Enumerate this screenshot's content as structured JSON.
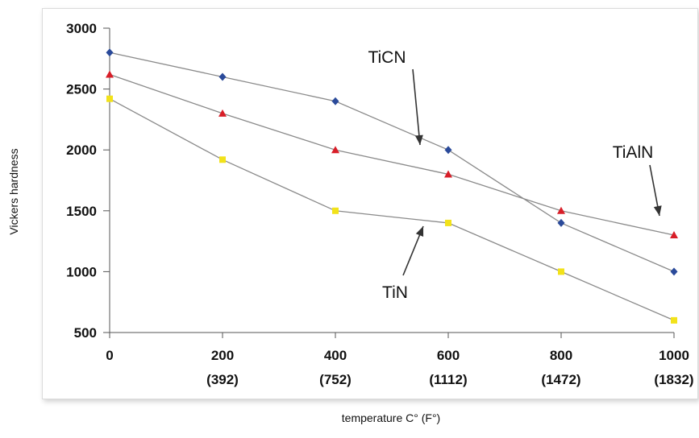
{
  "chart_data": {
    "type": "line",
    "title": "",
    "xlabel": "temperature C° (F°)",
    "ylabel": "Vickers hardness",
    "x": [
      0,
      200,
      400,
      600,
      800,
      1000
    ],
    "x_tick_labels": [
      "0",
      "200",
      "400",
      "600",
      "800",
      "1000"
    ],
    "x_tick_sublabels": [
      "",
      "(392)",
      "(752)",
      "(1112)",
      "(1472)",
      "(1832)"
    ],
    "y_ticks": [
      500,
      1000,
      1500,
      2000,
      2500,
      3000
    ],
    "xlim": [
      0,
      1000
    ],
    "ylim": [
      500,
      3000
    ],
    "grid": false,
    "series": [
      {
        "name": "TiCN",
        "color": "#2a4a9a",
        "marker": "diamond",
        "values": [
          2800,
          2600,
          2400,
          2000,
          1400,
          1000
        ]
      },
      {
        "name": "TiAlN",
        "color": "#d81e28",
        "marker": "triangle",
        "values": [
          2620,
          2300,
          2000,
          1800,
          1500,
          1300
        ]
      },
      {
        "name": "TiN",
        "color": "#f2e21a",
        "marker": "square",
        "values": [
          2420,
          1920,
          1500,
          1400,
          1000,
          600
        ]
      }
    ],
    "annotations": [
      {
        "text": "TiCN",
        "series": "TiCN",
        "arrow_to_x": 600
      },
      {
        "text": "TiAlN",
        "series": "TiAlN",
        "arrow_to_x": 1000
      },
      {
        "text": "TiN",
        "series": "TiN",
        "arrow_to_x": 550
      }
    ]
  }
}
